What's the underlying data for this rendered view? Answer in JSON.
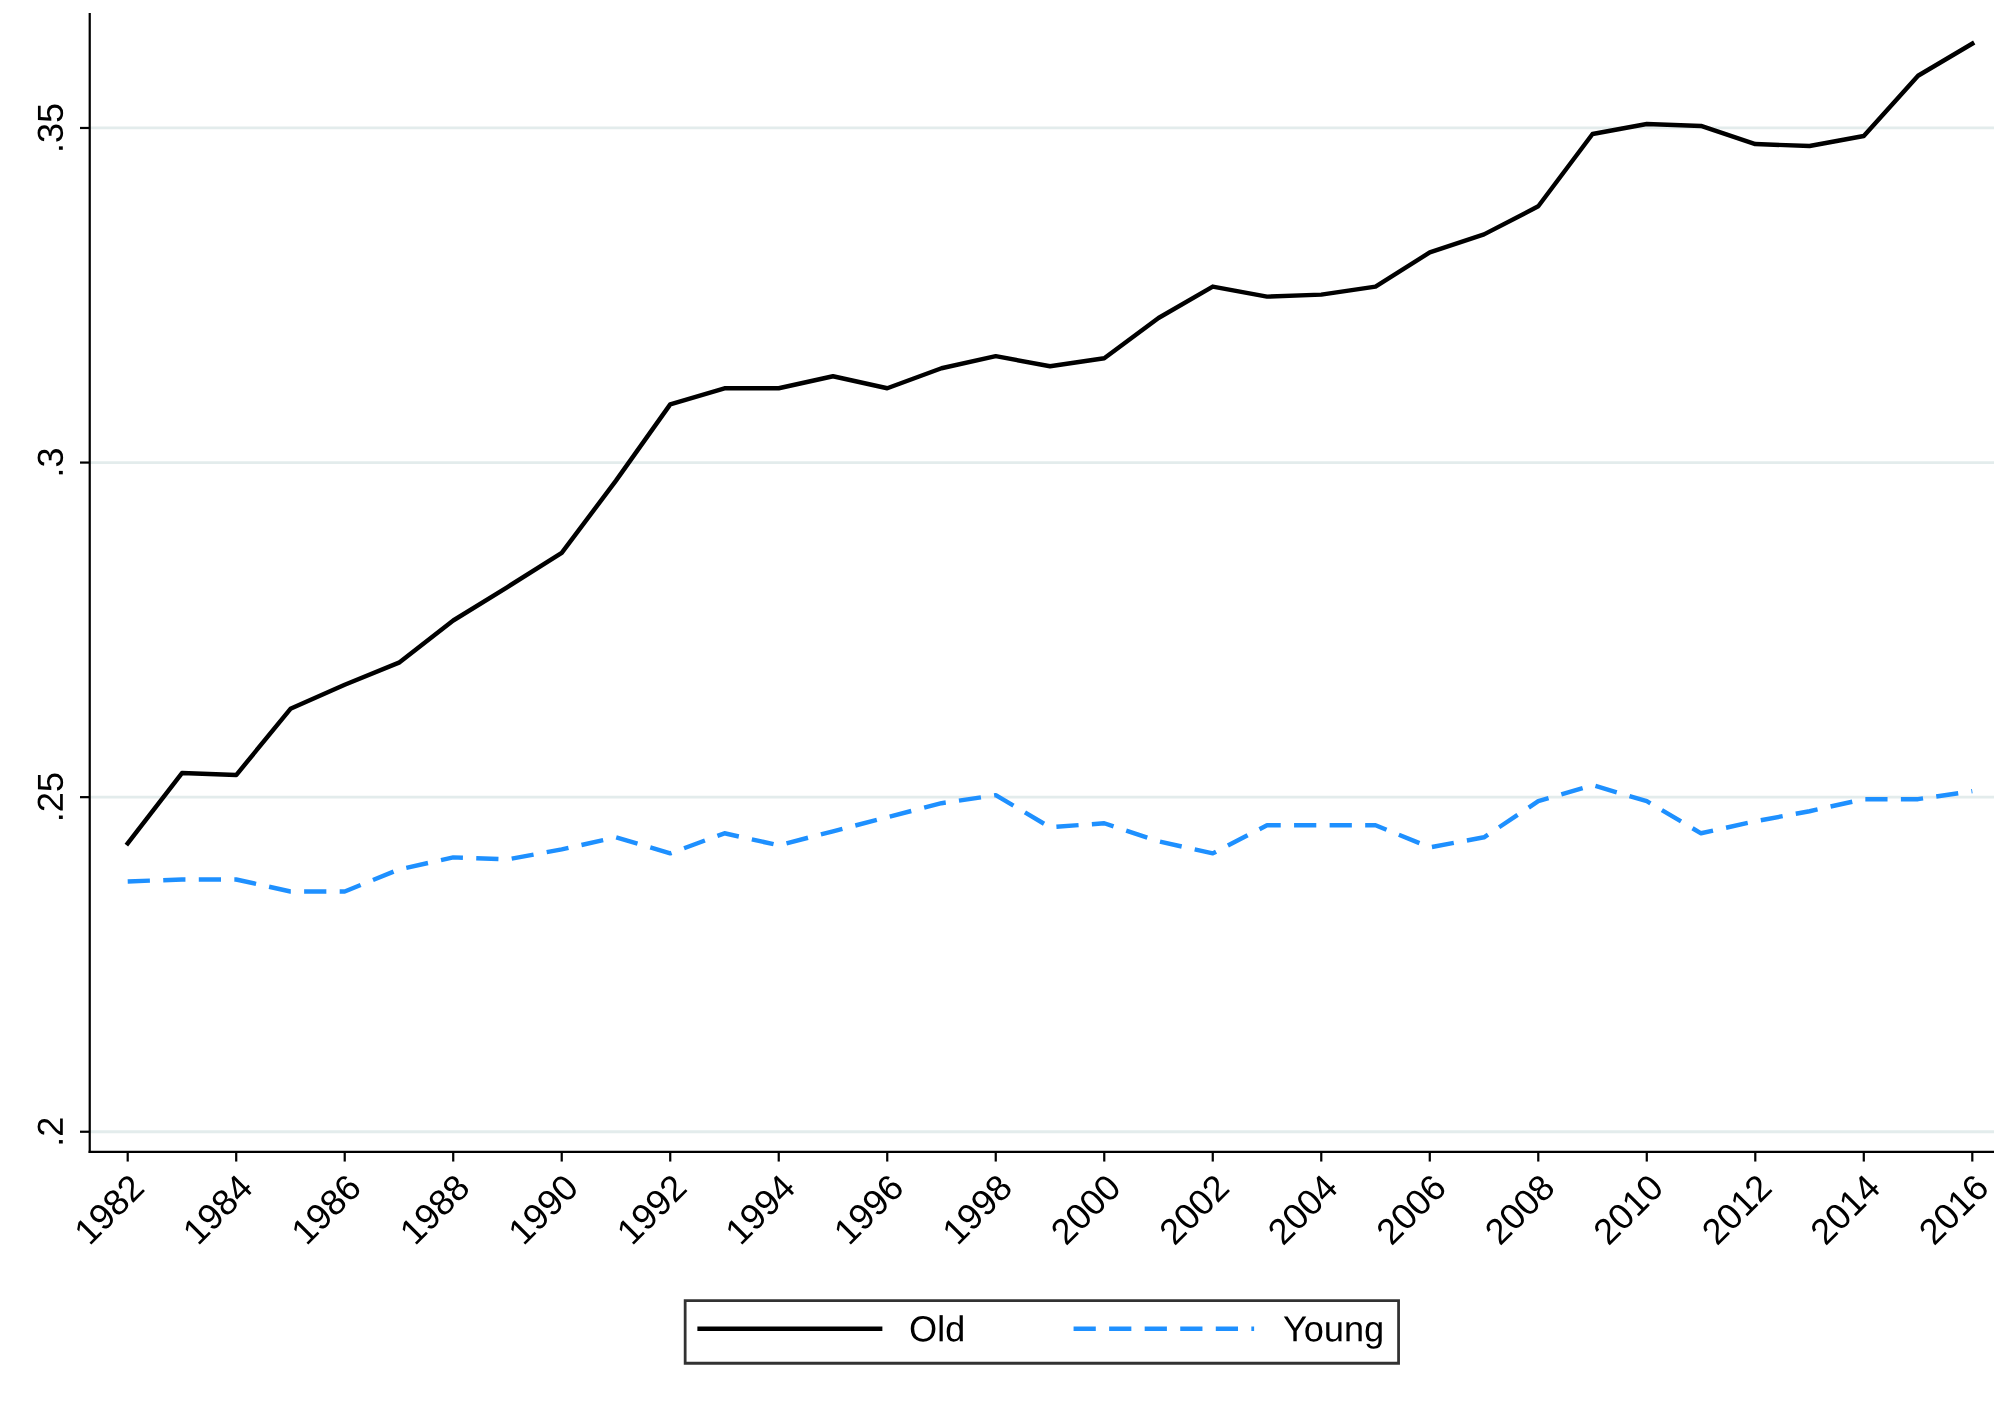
{
  "chart_data": {
    "type": "line",
    "x": [
      1982,
      1983,
      1984,
      1985,
      1986,
      1987,
      1988,
      1989,
      1990,
      1991,
      1992,
      1993,
      1994,
      1995,
      1996,
      1997,
      1998,
      1999,
      2000,
      2001,
      2002,
      2003,
      2004,
      2005,
      2006,
      2007,
      2008,
      2009,
      2010,
      2011,
      2012,
      2013,
      2014,
      2015,
      2016
    ],
    "series": [
      {
        "name": "Old",
        "color": "#000000",
        "line_style": "solid",
        "values": [
          0.2431,
          0.2536,
          0.2533,
          0.2632,
          0.2668,
          0.2701,
          0.2764,
          0.2814,
          0.2865,
          0.2973,
          0.3087,
          0.3111,
          0.3111,
          0.3129,
          0.3111,
          0.3141,
          0.3159,
          0.3144,
          0.3156,
          0.3216,
          0.3263,
          0.3248,
          0.3251,
          0.3263,
          0.3314,
          0.3341,
          0.3383,
          0.3491,
          0.3506,
          0.3503,
          0.3476,
          0.3473,
          0.3488,
          0.3578,
          0.3626
        ]
      },
      {
        "name": "Young",
        "color": "#1e90ff",
        "line_style": "dashed",
        "values": [
          0.2374,
          0.2377,
          0.2377,
          0.2359,
          0.2359,
          0.2392,
          0.241,
          0.2407,
          0.2422,
          0.244,
          0.2416,
          0.2446,
          0.2428,
          0.2449,
          0.247,
          0.2491,
          0.2503,
          0.2455,
          0.2461,
          0.2434,
          0.2416,
          0.2458,
          0.2458,
          0.2458,
          0.2425,
          0.244,
          0.2494,
          0.2518,
          0.2494,
          0.2446,
          0.2464,
          0.2479,
          0.2497,
          0.2497,
          0.2509
        ]
      }
    ],
    "xlim": [
      1981.3,
      2016.4
    ],
    "xticks": [
      1982,
      1984,
      1986,
      1988,
      1990,
      1992,
      1994,
      1996,
      1998,
      2000,
      2002,
      2004,
      2006,
      2008,
      2010,
      2012,
      2014,
      2016
    ],
    "ylim": [
      0.197,
      0.367
    ],
    "yticks": [
      {
        "value": 0.2,
        "label": ".2"
      },
      {
        "value": 0.25,
        "label": ".25"
      },
      {
        "value": 0.3,
        "label": ".3"
      },
      {
        "value": 0.35,
        "label": ".35"
      }
    ],
    "grid": "y",
    "legend": "bottom",
    "marker": "none"
  }
}
